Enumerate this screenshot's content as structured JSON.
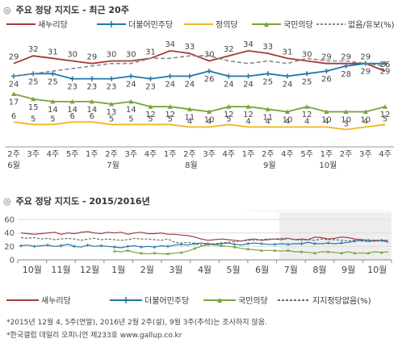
{
  "header1": {
    "mark": "◎",
    "title": "주요 정당 지지도 - 최근 20주"
  },
  "header2": {
    "mark": "◎",
    "title": "주요 정당 지지도 - 2015/2016년"
  },
  "legend": [
    {
      "name": "새누리당",
      "color": "#a33a3a",
      "style": "line"
    },
    {
      "name": "더불어민주당",
      "color": "#1f77a8",
      "style": "plus"
    },
    {
      "name": "정의당",
      "color": "#f2b51c",
      "style": "line"
    },
    {
      "name": "국민의당",
      "color": "#7aa33a",
      "style": "triangle"
    },
    {
      "name": "없음/유보(%)",
      "color": "#888888",
      "style": "dashed"
    }
  ],
  "legend2": [
    {
      "name": "새누리당",
      "color": "#a33a3a",
      "style": "line"
    },
    {
      "name": "더불어민주당",
      "color": "#1f77a8",
      "style": "plus"
    },
    {
      "name": "국민의당",
      "color": "#7aa33a",
      "style": "triangle"
    },
    {
      "name": "지지정당없음(%)",
      "color": "#666666",
      "style": "dashed"
    }
  ],
  "notes": {
    "line1": "*2015년 12월 4, 5주(연말), 2016년 2월 2주(설), 9월 3주(추석)는 조사하지 않음.",
    "line2": "*한국갤럽 데일리 오피니언 제233호 www.gallup.co.kr"
  },
  "chart_data": [
    {
      "type": "line",
      "title": "주요 정당 지지도 - 최근 20주",
      "x": [
        "2주",
        "3주",
        "4주",
        "5주",
        "1주",
        "2주",
        "3주",
        "4주",
        "1주",
        "2주",
        "3주",
        "4주",
        "1주",
        "2주",
        "4주",
        "5주",
        "1주",
        "2주",
        "3주",
        "4주"
      ],
      "month_labels": [
        {
          "index": 0,
          "label": "6월"
        },
        {
          "index": 5,
          "label": "7월"
        },
        {
          "index": 9,
          "label": "8월"
        },
        {
          "index": 13,
          "label": "9월"
        },
        {
          "index": 16,
          "label": "10월"
        }
      ],
      "series": [
        {
          "name": "새누리당",
          "color": "#a33a3a",
          "values": [
            29,
            32,
            31,
            30,
            29,
            30,
            30,
            31,
            34,
            33,
            30,
            32,
            34,
            33,
            31,
            30,
            29,
            29,
            29,
            26
          ]
        },
        {
          "name": "더불어민주당",
          "color": "#1f77a8",
          "values": [
            24,
            25,
            25,
            23,
            23,
            23,
            24,
            23,
            24,
            24,
            26,
            24,
            24,
            25,
            24,
            25,
            26,
            28,
            29,
            29
          ]
        },
        {
          "name": "정의당",
          "color": "#f2b51c",
          "values": [
            6,
            5,
            5,
            6,
            6,
            5,
            5,
            5,
            5,
            4,
            4,
            5,
            4,
            4,
            4,
            4,
            4,
            3,
            4,
            5
          ]
        },
        {
          "name": "국민의당",
          "color": "#7aa33a",
          "values": [
            17,
            15,
            14,
            14,
            14,
            13,
            14,
            12,
            12,
            11,
            10,
            12,
            12,
            11,
            10,
            12,
            10,
            10,
            10,
            12
          ]
        },
        {
          "name": "없음/유보(%)",
          "color": "#888888",
          "values": [
            24,
            25,
            26,
            27,
            28,
            29,
            29,
            31,
            31,
            32,
            32,
            30,
            29,
            30,
            29,
            31,
            30,
            30,
            29,
            28
          ]
        }
      ],
      "ylim": [
        0,
        40
      ]
    },
    {
      "type": "line",
      "title": "주요 정당 지지도 - 2015/2016년",
      "yticks": [
        0,
        20,
        40,
        60
      ],
      "ylim": [
        0,
        60
      ],
      "month_labels": [
        "10월",
        "11월",
        "12월",
        "1월",
        "2월",
        "3월",
        "4월",
        "5월",
        "6월",
        "7월",
        "8월",
        "9월",
        "10월"
      ],
      "highlight_range_months": [
        9.1,
        13
      ],
      "series": [
        {
          "name": "새누리당",
          "color": "#a33a3a",
          "values": [
            40,
            39,
            38,
            39,
            40,
            41,
            38,
            40,
            39,
            41,
            42,
            40,
            39,
            41,
            40,
            41,
            38,
            40,
            41,
            39,
            39,
            40,
            38,
            38,
            37,
            36,
            34,
            31,
            29,
            30,
            31,
            30,
            29,
            28,
            30,
            31,
            29,
            30,
            31,
            30,
            32,
            30,
            31,
            30,
            34,
            33,
            31,
            32,
            34,
            33,
            31,
            30,
            29,
            29,
            29,
            26
          ]
        },
        {
          "name": "더불어민주당",
          "color": "#1f77a8",
          "values": [
            21,
            22,
            20,
            21,
            22,
            20,
            21,
            23,
            20,
            19,
            22,
            20,
            21,
            20,
            19,
            18,
            20,
            21,
            19,
            20,
            19,
            21,
            20,
            22,
            23,
            22,
            24,
            25,
            24,
            23,
            24,
            25,
            23,
            22,
            24,
            25,
            24,
            23,
            23,
            24,
            23,
            24,
            24,
            26,
            24,
            24,
            25,
            24,
            25,
            26,
            28,
            29,
            29,
            28,
            29,
            29
          ]
        },
        {
          "name": "국민의당",
          "color": "#7aa33a",
          "values": [
            null,
            null,
            null,
            null,
            null,
            null,
            null,
            null,
            null,
            null,
            null,
            null,
            null,
            null,
            13,
            12,
            14,
            11,
            10,
            9,
            10,
            9,
            9,
            10,
            11,
            13,
            17,
            20,
            23,
            22,
            21,
            20,
            19,
            17,
            16,
            15,
            14,
            14,
            14,
            13,
            14,
            12,
            12,
            11,
            10,
            12,
            12,
            11,
            10,
            12,
            10,
            10,
            10,
            12,
            11,
            12
          ]
        },
        {
          "name": "지지정당없음(%)",
          "color": "#666666",
          "values": [
            33,
            32,
            33,
            31,
            32,
            30,
            31,
            32,
            31,
            29,
            31,
            32,
            30,
            31,
            30,
            29,
            30,
            32,
            31,
            31,
            30,
            29,
            31,
            26,
            25,
            26,
            24,
            22,
            23,
            24,
            25,
            26,
            27,
            28,
            29,
            29,
            30,
            31,
            31,
            32,
            32,
            30,
            29,
            30,
            29,
            31,
            30,
            30,
            29,
            28,
            29,
            28,
            27,
            28,
            28,
            27
          ]
        }
      ]
    }
  ]
}
